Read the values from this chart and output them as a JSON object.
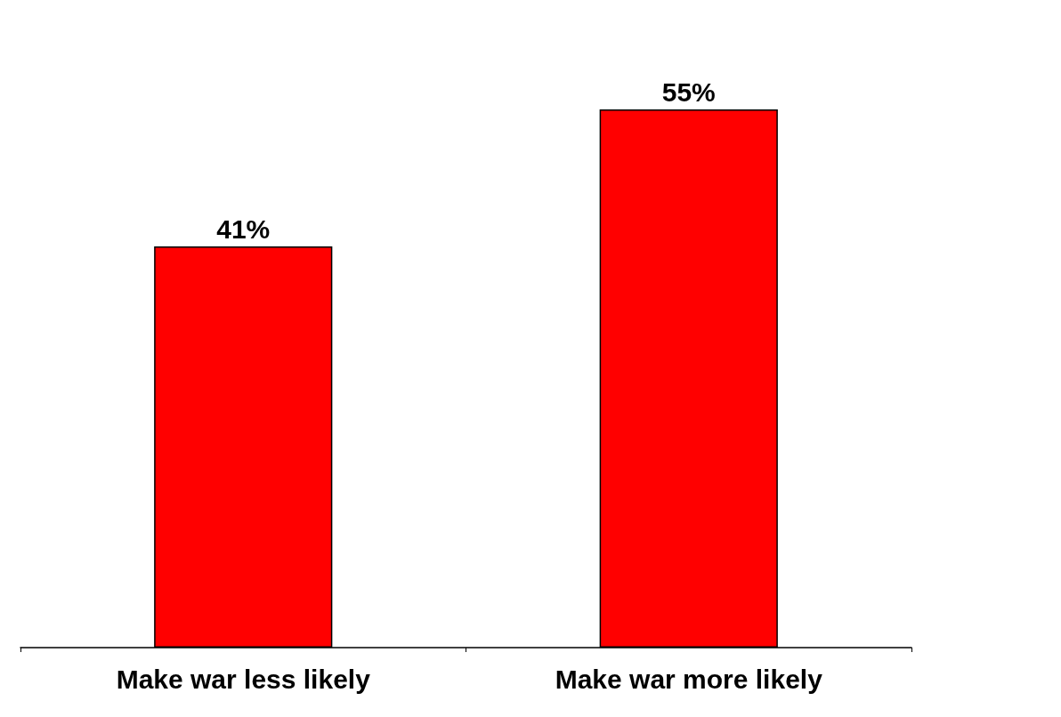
{
  "chart_data": {
    "type": "bar",
    "categories": [
      "Make war less likely",
      "Make war more likely"
    ],
    "values": [
      41,
      55
    ],
    "color": "#ff0000",
    "value_labels": [
      "41%",
      "55%"
    ]
  }
}
